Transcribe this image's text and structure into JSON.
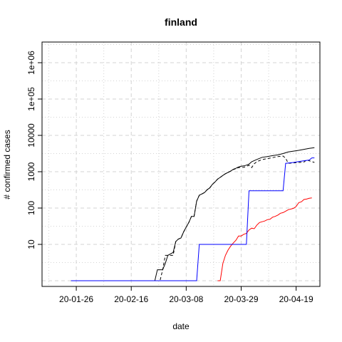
{
  "chart_data": {
    "type": "line",
    "title": "finland",
    "xlabel": "date",
    "ylabel": "# confirmed cases",
    "x_axis": {
      "kind": "date",
      "range": [
        "2020-01-14",
        "2020-04-27"
      ],
      "ticks": [
        {
          "date": "2020-01-26",
          "label": "20-01-26"
        },
        {
          "date": "2020-02-16",
          "label": "20-02-16"
        },
        {
          "date": "2020-03-08",
          "label": "20-03-08"
        },
        {
          "date": "2020-03-29",
          "label": "20-03-29"
        },
        {
          "date": "2020-04-19",
          "label": "20-04-19"
        }
      ]
    },
    "y_axis": {
      "scale": "log10",
      "range": [
        1,
        1000000
      ],
      "ticks": [
        {
          "value": 10,
          "label": "10"
        },
        {
          "value": 100,
          "label": "100"
        },
        {
          "value": 1000,
          "label": "1000"
        },
        {
          "value": 10000,
          "label": "10000"
        },
        {
          "value": 100000,
          "label": "1e+05"
        },
        {
          "value": 1000000,
          "label": "1e+06"
        }
      ]
    },
    "grid": true,
    "series": [
      {
        "color": "#000000",
        "dash": "solid",
        "points": [
          [
            "2020-01-24",
            1
          ],
          [
            "2020-02-25",
            1
          ],
          [
            "2020-02-26",
            2
          ],
          [
            "2020-02-28",
            2
          ],
          [
            "2020-02-29",
            3
          ],
          [
            "2020-03-01",
            5
          ],
          [
            "2020-03-03",
            6
          ],
          [
            "2020-03-04",
            12
          ],
          [
            "2020-03-05",
            14
          ],
          [
            "2020-03-06",
            15
          ],
          [
            "2020-03-07",
            22
          ],
          [
            "2020-03-08",
            30
          ],
          [
            "2020-03-09",
            40
          ],
          [
            "2020-03-10",
            59
          ],
          [
            "2020-03-11",
            59
          ],
          [
            "2020-03-12",
            155
          ],
          [
            "2020-03-13",
            225
          ],
          [
            "2020-03-14",
            244
          ],
          [
            "2020-03-15",
            267
          ],
          [
            "2020-03-16",
            319
          ],
          [
            "2020-03-17",
            359
          ],
          [
            "2020-03-18",
            450
          ],
          [
            "2020-03-19",
            523
          ],
          [
            "2020-03-20",
            626
          ],
          [
            "2020-03-21",
            700
          ],
          [
            "2020-03-22",
            792
          ],
          [
            "2020-03-23",
            880
          ],
          [
            "2020-03-24",
            958
          ],
          [
            "2020-03-25",
            1041
          ],
          [
            "2020-03-26",
            1167
          ],
          [
            "2020-03-27",
            1240
          ],
          [
            "2020-03-28",
            1352
          ],
          [
            "2020-03-29",
            1418
          ],
          [
            "2020-03-30",
            1446
          ],
          [
            "2020-03-31",
            1518
          ],
          [
            "2020-04-01",
            1615
          ],
          [
            "2020-04-02",
            1882
          ],
          [
            "2020-04-04",
            2176
          ],
          [
            "2020-04-06",
            2487
          ],
          [
            "2020-04-08",
            2605
          ],
          [
            "2020-04-10",
            2769
          ],
          [
            "2020-04-12",
            2905
          ],
          [
            "2020-04-14",
            3161
          ],
          [
            "2020-04-16",
            3489
          ],
          [
            "2020-04-18",
            3681
          ],
          [
            "2020-04-20",
            3868
          ],
          [
            "2020-04-22",
            4129
          ],
          [
            "2020-04-24",
            4395
          ],
          [
            "2020-04-26",
            4576
          ]
        ]
      },
      {
        "color": "#000000",
        "dash": "dashed",
        "points": [
          [
            "2020-01-24",
            1
          ],
          [
            "2020-02-27",
            1
          ],
          [
            "2020-02-28",
            2
          ],
          [
            "2020-02-29",
            5
          ],
          [
            "2020-03-03",
            5
          ],
          [
            "2020-03-04",
            12
          ],
          [
            "2020-03-05",
            14
          ],
          [
            "2020-03-06",
            15
          ],
          [
            "2020-03-07",
            22
          ],
          [
            "2020-03-08",
            30
          ],
          [
            "2020-03-09",
            40
          ],
          [
            "2020-03-10",
            59
          ],
          [
            "2020-03-11",
            59
          ],
          [
            "2020-03-12",
            155
          ],
          [
            "2020-03-13",
            225
          ],
          [
            "2020-03-14",
            244
          ],
          [
            "2020-03-15",
            267
          ],
          [
            "2020-03-16",
            319
          ],
          [
            "2020-03-17",
            359
          ],
          [
            "2020-03-18",
            450
          ],
          [
            "2020-03-19",
            523
          ],
          [
            "2020-03-20",
            626
          ],
          [
            "2020-03-21",
            700
          ],
          [
            "2020-03-22",
            792
          ],
          [
            "2020-03-23",
            880
          ],
          [
            "2020-03-24",
            958
          ],
          [
            "2020-03-25",
            1041
          ],
          [
            "2020-03-26",
            1150
          ],
          [
            "2020-03-27",
            1210
          ],
          [
            "2020-03-28",
            1300
          ],
          [
            "2020-03-29",
            1320
          ],
          [
            "2020-03-30",
            1330
          ],
          [
            "2020-03-31",
            1400
          ],
          [
            "2020-04-01",
            1500
          ],
          [
            "2020-04-02",
            1300
          ],
          [
            "2020-04-03",
            1650
          ],
          [
            "2020-04-04",
            1900
          ],
          [
            "2020-04-06",
            2150
          ],
          [
            "2020-04-08",
            2300
          ],
          [
            "2020-04-10",
            2450
          ],
          [
            "2020-04-12",
            2600
          ],
          [
            "2020-04-14",
            2700
          ],
          [
            "2020-04-15",
            2350
          ],
          [
            "2020-04-16",
            1700
          ],
          [
            "2020-04-18",
            1750
          ],
          [
            "2020-04-20",
            1800
          ],
          [
            "2020-04-22",
            1850
          ],
          [
            "2020-04-23",
            2100
          ],
          [
            "2020-04-24",
            2000
          ],
          [
            "2020-04-26",
            1800
          ]
        ]
      },
      {
        "color": "#ff0000",
        "dash": "solid",
        "points": [
          [
            "2020-03-20",
            1
          ],
          [
            "2020-03-21",
            1
          ],
          [
            "2020-03-22",
            3
          ],
          [
            "2020-03-23",
            5
          ],
          [
            "2020-03-24",
            7
          ],
          [
            "2020-03-25",
            9
          ],
          [
            "2020-03-26",
            11
          ],
          [
            "2020-03-27",
            13
          ],
          [
            "2020-03-28",
            17
          ],
          [
            "2020-03-29",
            17
          ],
          [
            "2020-03-30",
            19
          ],
          [
            "2020-03-31",
            20
          ],
          [
            "2020-04-01",
            25
          ],
          [
            "2020-04-02",
            28
          ],
          [
            "2020-04-03",
            27
          ],
          [
            "2020-04-04",
            34
          ],
          [
            "2020-04-05",
            40
          ],
          [
            "2020-04-06",
            42
          ],
          [
            "2020-04-07",
            44
          ],
          [
            "2020-04-08",
            48
          ],
          [
            "2020-04-09",
            49
          ],
          [
            "2020-04-10",
            56
          ],
          [
            "2020-04-11",
            59
          ],
          [
            "2020-04-12",
            64
          ],
          [
            "2020-04-13",
            72
          ],
          [
            "2020-04-14",
            75
          ],
          [
            "2020-04-15",
            82
          ],
          [
            "2020-04-16",
            90
          ],
          [
            "2020-04-17",
            94
          ],
          [
            "2020-04-18",
            98
          ],
          [
            "2020-04-19",
            110
          ],
          [
            "2020-04-20",
            141
          ],
          [
            "2020-04-21",
            149
          ],
          [
            "2020-04-22",
            172
          ],
          [
            "2020-04-23",
            177
          ],
          [
            "2020-04-24",
            186
          ],
          [
            "2020-04-25",
            190
          ]
        ]
      },
      {
        "color": "#0000ff",
        "dash": "solid",
        "points": [
          [
            "2020-01-24",
            1
          ],
          [
            "2020-03-12",
            1
          ],
          [
            "2020-03-13",
            10
          ],
          [
            "2020-03-31",
            10
          ],
          [
            "2020-04-01",
            300
          ],
          [
            "2020-04-14",
            300
          ],
          [
            "2020-04-15",
            1700
          ],
          [
            "2020-04-18",
            1800
          ],
          [
            "2020-04-20",
            1900
          ],
          [
            "2020-04-22",
            2000
          ],
          [
            "2020-04-24",
            2100
          ],
          [
            "2020-04-25",
            2400
          ],
          [
            "2020-04-26",
            2400
          ]
        ]
      }
    ]
  }
}
